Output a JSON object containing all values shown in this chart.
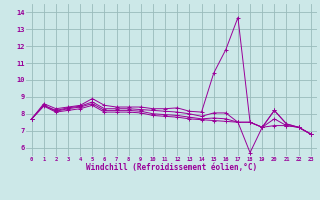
{
  "xlabel": "Windchill (Refroidissement éolien,°C)",
  "x_ticks": [
    0,
    1,
    2,
    3,
    4,
    5,
    6,
    7,
    8,
    9,
    10,
    11,
    12,
    13,
    14,
    15,
    16,
    17,
    18,
    19,
    20,
    21,
    22,
    23
  ],
  "y_ticks": [
    6,
    7,
    8,
    9,
    10,
    11,
    12,
    13,
    14
  ],
  "ylim": [
    5.5,
    14.5
  ],
  "xlim": [
    -0.5,
    23.5
  ],
  "line_color": "#990099",
  "bg_color": "#cce8e8",
  "grid_color": "#99bbbb",
  "lines": [
    [
      7.7,
      8.6,
      8.3,
      8.4,
      8.5,
      8.9,
      8.5,
      8.4,
      8.4,
      8.4,
      8.3,
      8.3,
      8.35,
      8.15,
      8.1,
      10.4,
      11.8,
      13.7,
      7.5,
      7.2,
      8.2,
      7.4,
      7.2,
      6.8
    ],
    [
      7.7,
      8.5,
      8.2,
      8.35,
      8.45,
      8.7,
      8.3,
      8.3,
      8.3,
      8.25,
      8.2,
      8.15,
      8.1,
      8.0,
      7.85,
      8.05,
      8.05,
      7.5,
      7.5,
      7.2,
      8.2,
      7.4,
      7.2,
      6.8
    ],
    [
      7.7,
      8.5,
      8.15,
      8.3,
      8.4,
      8.6,
      8.2,
      8.2,
      8.2,
      8.15,
      8.0,
      7.95,
      7.9,
      7.8,
      7.7,
      7.75,
      7.7,
      7.5,
      5.7,
      7.2,
      7.7,
      7.3,
      7.2,
      6.8
    ],
    [
      7.7,
      8.45,
      8.1,
      8.2,
      8.3,
      8.5,
      8.1,
      8.1,
      8.1,
      8.05,
      7.9,
      7.85,
      7.8,
      7.7,
      7.65,
      7.6,
      7.55,
      7.5,
      7.5,
      7.2,
      7.3,
      7.3,
      7.2,
      6.8
    ]
  ]
}
